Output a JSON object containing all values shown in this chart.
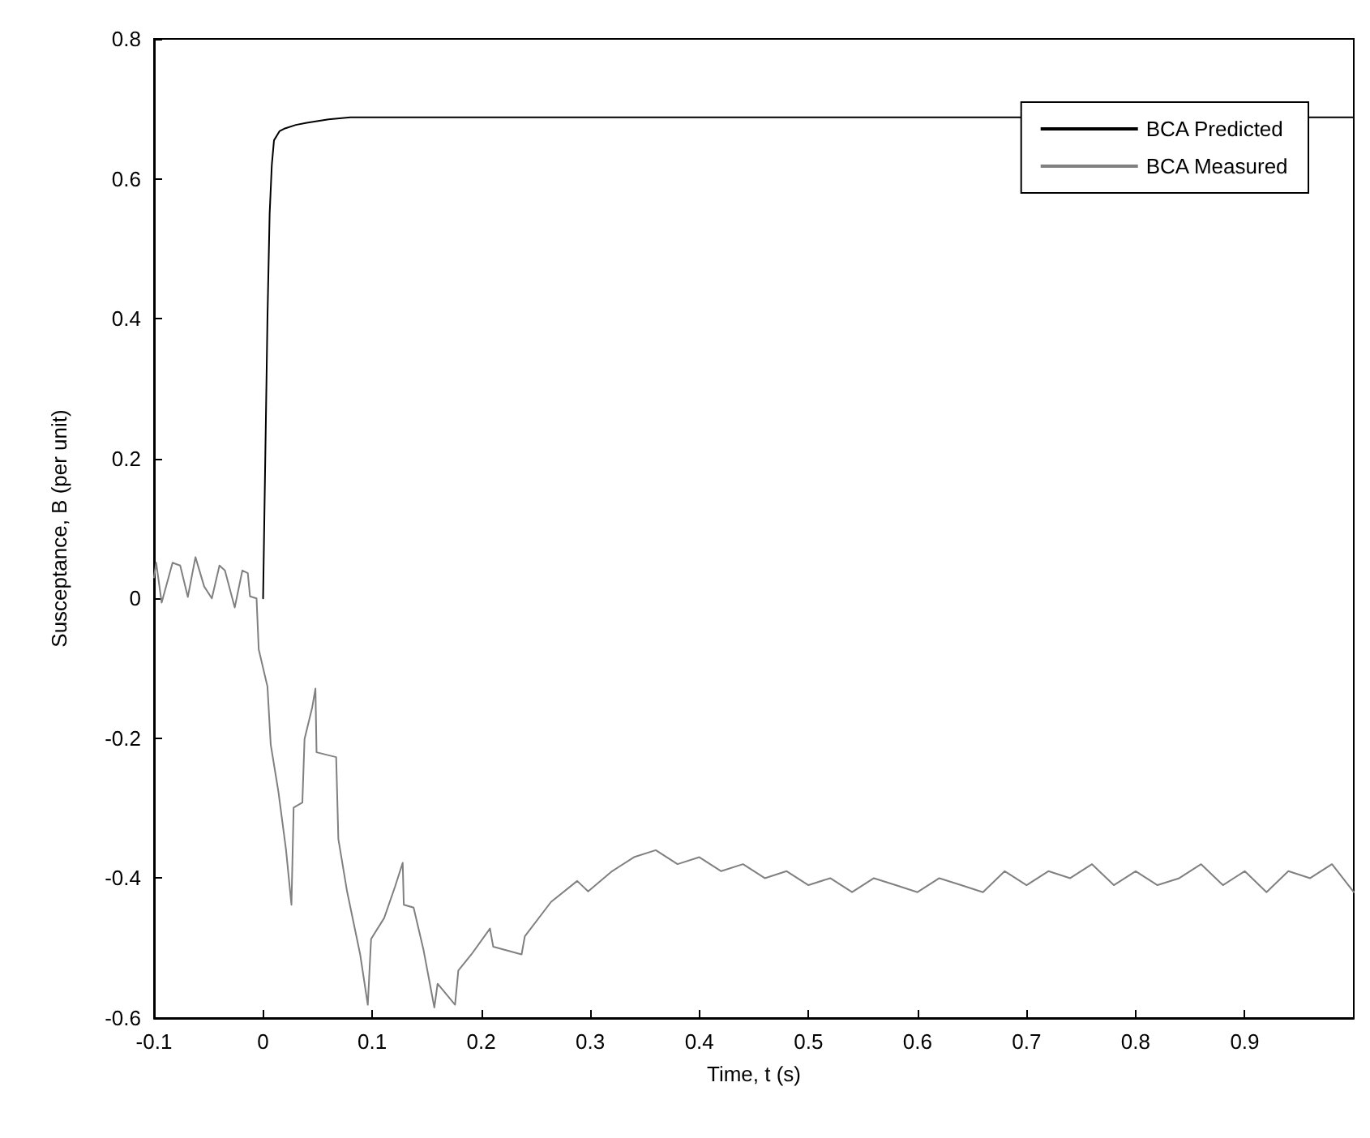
{
  "chart_data": {
    "type": "line",
    "xlabel": "Time, t (s)",
    "ylabel": "Susceptance, B (per unit)",
    "xlim": [
      -0.1,
      1.0
    ],
    "xticks": [
      -0.1,
      0,
      0.1,
      0.2,
      0.3,
      0.4,
      0.5,
      0.6,
      0.7,
      0.8,
      0.9
    ],
    "ylim": [
      -0.6,
      0.8
    ],
    "yticks": [
      -0.6,
      -0.4,
      -0.2,
      0,
      0.2,
      0.4,
      0.6,
      0.8
    ],
    "grid": false,
    "legend": "top right",
    "line_style": "solid",
    "marker": "none",
    "series": [
      {
        "name": "BCA Predicted",
        "color": "#000000",
        "x": [
          0,
          0.002,
          0.004,
          0.006,
          0.008,
          0.01,
          0.015,
          0.02,
          0.03,
          0.04,
          0.06,
          0.08,
          1.0
        ],
        "values": [
          0,
          0.2,
          0.4,
          0.55,
          0.62,
          0.655,
          0.668,
          0.672,
          0.677,
          0.68,
          0.685,
          0.688,
          0.688
        ]
      },
      {
        "name": "BCA Measured",
        "color": "#808080",
        "x": [
          -0.1,
          -0.098,
          -0.093,
          -0.083,
          -0.076,
          -0.069,
          -0.062,
          -0.054,
          -0.047,
          -0.04,
          -0.035,
          -0.026,
          -0.019,
          -0.014,
          -0.012,
          -0.006,
          -0.004,
          0.004,
          0.007,
          0.014,
          0.021,
          0.026,
          0.028,
          0.036,
          0.038,
          0.045,
          0.048,
          0.049,
          0.067,
          0.069,
          0.077,
          0.089,
          0.096,
          0.099,
          0.111,
          0.121,
          0.128,
          0.129,
          0.138,
          0.147,
          0.157,
          0.16,
          0.176,
          0.179,
          0.191,
          0.208,
          0.211,
          0.237,
          0.24,
          0.264,
          0.288,
          0.298,
          0.32,
          0.34,
          0.36,
          0.38,
          0.4,
          0.42,
          0.44,
          0.46,
          0.48,
          0.5,
          0.52,
          0.54,
          0.56,
          0.58,
          0.6,
          0.62,
          0.64,
          0.66,
          0.68,
          0.7,
          0.72,
          0.74,
          0.76,
          0.78,
          0.8,
          0.82,
          0.84,
          0.86,
          0.88,
          0.9,
          0.92,
          0.94,
          0.96,
          0.98,
          1.0
        ],
        "values": [
          0.03,
          0.051,
          -0.006,
          0.051,
          0.047,
          0.002,
          0.059,
          0.017,
          0,
          0.047,
          0.04,
          -0.013,
          0.04,
          0.036,
          0.003,
          0,
          -0.073,
          -0.126,
          -0.209,
          -0.276,
          -0.359,
          -0.438,
          -0.299,
          -0.292,
          -0.201,
          -0.156,
          -0.129,
          -0.22,
          -0.227,
          -0.344,
          -0.419,
          -0.509,
          -0.581,
          -0.487,
          -0.457,
          -0.412,
          -0.378,
          -0.438,
          -0.442,
          -0.502,
          -0.585,
          -0.551,
          -0.581,
          -0.532,
          -0.509,
          -0.472,
          -0.498,
          -0.509,
          -0.483,
          -0.434,
          -0.404,
          -0.419,
          -0.39,
          -0.37,
          -0.36,
          -0.38,
          -0.37,
          -0.39,
          -0.38,
          -0.4,
          -0.39,
          -0.41,
          -0.4,
          -0.42,
          -0.4,
          -0.41,
          -0.42,
          -0.4,
          -0.41,
          -0.42,
          -0.39,
          -0.41,
          -0.39,
          -0.4,
          -0.38,
          -0.41,
          -0.39,
          -0.41,
          -0.4,
          -0.38,
          -0.41,
          -0.39,
          -0.42,
          -0.39,
          -0.4,
          -0.38,
          -0.42
        ]
      }
    ]
  }
}
